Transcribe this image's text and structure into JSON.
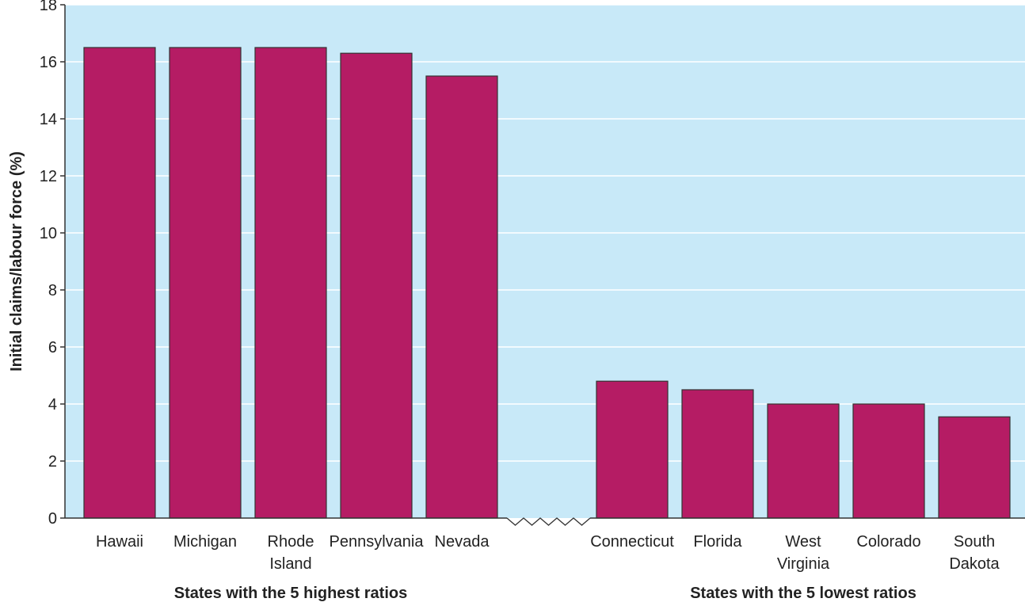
{
  "chart_data": {
    "type": "bar",
    "ylabel": "Initial claims/labour force (%)",
    "xlabel": "",
    "ylim": [
      0,
      18
    ],
    "yticks": [
      0,
      2,
      4,
      6,
      8,
      10,
      12,
      14,
      16,
      18
    ],
    "grid": true,
    "axis_break": "between groups",
    "groups": [
      {
        "label": "States with the 5 highest ratios",
        "categories": [
          "Hawaii",
          "Michigan",
          "Rhode Island",
          "Pennsylvania",
          "Nevada"
        ],
        "values": [
          16.5,
          16.5,
          16.5,
          16.3,
          15.5
        ]
      },
      {
        "label": "States with the 5 lowest ratios",
        "categories": [
          "Connecticut",
          "Florida",
          "West Virginia",
          "Colorado",
          "South Dakota"
        ],
        "values": [
          4.8,
          4.5,
          4.0,
          4.0,
          3.55
        ]
      }
    ]
  },
  "colors": {
    "plot_background": "#c8e9f8",
    "bar_fill": "#b51c64",
    "bar_stroke": "#333333",
    "grid": "#ffffff"
  }
}
